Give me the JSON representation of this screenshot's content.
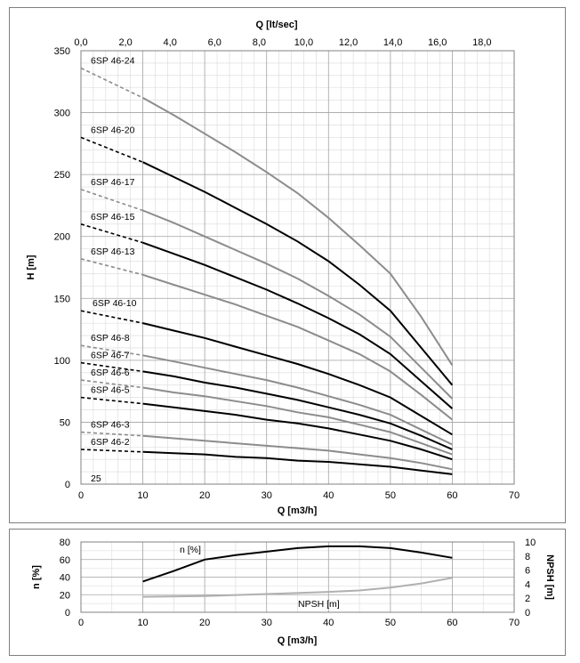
{
  "chart_data": [
    {
      "type": "line",
      "xlabel": "Q [m3/h]",
      "ylabel": "H [m]",
      "x2label": "Q [lt/sec]",
      "xlim": [
        0,
        70
      ],
      "ylim": [
        0,
        350
      ],
      "xticks": [
        "0",
        "10",
        "20",
        "30",
        "40",
        "50",
        "60",
        "70"
      ],
      "yticks": [
        "0",
        "50",
        "100",
        "150",
        "200",
        "250",
        "300",
        "350"
      ],
      "x2ticks": [
        "0,0",
        "2,0",
        "4,0",
        "6,0",
        "8,0",
        "10,0",
        "12,0",
        "14,0",
        "16,0",
        "18,0"
      ],
      "x2_per_x": 0.27778,
      "grid": true,
      "corner_note": "25",
      "series": [
        {
          "name": "6SP 46-24",
          "color": "#8c8c8c",
          "dashed_x": [
            0,
            10
          ],
          "dashed_y": [
            336,
            312
          ],
          "x": [
            10,
            15,
            20,
            25,
            30,
            35,
            40,
            45,
            50,
            55,
            60
          ],
          "y": [
            312,
            298,
            283,
            268,
            252,
            235,
            215,
            193,
            170,
            135,
            96
          ]
        },
        {
          "name": "6SP 46-20",
          "color": "#000000",
          "dashed_x": [
            0,
            10
          ],
          "dashed_y": [
            280,
            260
          ],
          "x": [
            10,
            15,
            20,
            25,
            30,
            35,
            40,
            45,
            50,
            55,
            60
          ],
          "y": [
            260,
            248,
            236,
            223,
            210,
            196,
            180,
            161,
            140,
            110,
            80
          ]
        },
        {
          "name": "6SP 46-17",
          "color": "#8c8c8c",
          "dashed_x": [
            0,
            10
          ],
          "dashed_y": [
            238,
            221
          ],
          "x": [
            10,
            15,
            20,
            25,
            30,
            35,
            40,
            45,
            50,
            55,
            60
          ],
          "y": [
            221,
            211,
            200,
            189,
            178,
            166,
            152,
            137,
            119,
            94,
            69
          ]
        },
        {
          "name": "6SP 46-15",
          "color": "#000000",
          "dashed_x": [
            0,
            10
          ],
          "dashed_y": [
            210,
            195
          ],
          "x": [
            10,
            15,
            20,
            25,
            30,
            35,
            40,
            45,
            50,
            55,
            60
          ],
          "y": [
            195,
            186,
            177,
            167,
            157,
            146,
            134,
            121,
            105,
            83,
            61
          ]
        },
        {
          "name": "6SP 46-13",
          "color": "#8c8c8c",
          "dashed_x": [
            0,
            10
          ],
          "dashed_y": [
            182,
            169
          ],
          "x": [
            10,
            15,
            20,
            25,
            30,
            35,
            40,
            45,
            50,
            55,
            60
          ],
          "y": [
            169,
            161,
            153,
            145,
            136,
            127,
            116,
            105,
            91,
            72,
            52
          ]
        },
        {
          "name": "6SP 46-10",
          "color": "#000000",
          "dashed_x": [
            0,
            10
          ],
          "dashed_y": [
            140,
            130
          ],
          "x": [
            10,
            15,
            20,
            25,
            30,
            35,
            40,
            45,
            50,
            55,
            60
          ],
          "y": [
            130,
            124,
            118,
            111,
            104,
            97,
            89,
            80,
            70,
            55,
            40
          ]
        },
        {
          "name": "6SP 46-8",
          "color": "#8c8c8c",
          "dashed_x": [
            0,
            10
          ],
          "dashed_y": [
            112,
            104
          ],
          "x": [
            10,
            15,
            20,
            25,
            30,
            35,
            40,
            45,
            50,
            55,
            60
          ],
          "y": [
            104,
            99,
            94,
            89,
            84,
            78,
            71,
            64,
            56,
            44,
            32
          ]
        },
        {
          "name": "6SP 46-7",
          "color": "#000000",
          "dashed_x": [
            0,
            10
          ],
          "dashed_y": [
            98,
            91
          ],
          "x": [
            10,
            15,
            20,
            25,
            30,
            35,
            40,
            45,
            50,
            55,
            60
          ],
          "y": [
            91,
            87,
            82,
            78,
            73,
            68,
            62,
            56,
            49,
            39,
            28
          ]
        },
        {
          "name": "6SP 46-6",
          "color": "#8c8c8c",
          "dashed_x": [
            0,
            10
          ],
          "dashed_y": [
            84,
            78
          ],
          "x": [
            10,
            15,
            20,
            25,
            30,
            35,
            40,
            45,
            50,
            55,
            60
          ],
          "y": [
            78,
            74,
            71,
            67,
            63,
            58,
            54,
            48,
            42,
            33,
            24
          ]
        },
        {
          "name": "6SP 46-5",
          "color": "#000000",
          "dashed_x": [
            0,
            10
          ],
          "dashed_y": [
            70,
            65
          ],
          "x": [
            10,
            15,
            20,
            25,
            30,
            35,
            40,
            45,
            50,
            55,
            60
          ],
          "y": [
            65,
            62,
            59,
            56,
            52,
            49,
            45,
            40,
            35,
            28,
            20
          ]
        },
        {
          "name": "6SP 46-3",
          "color": "#8c8c8c",
          "dashed_x": [
            0,
            10
          ],
          "dashed_y": [
            42,
            39
          ],
          "x": [
            10,
            15,
            20,
            25,
            30,
            35,
            40,
            45,
            50,
            55,
            60
          ],
          "y": [
            39,
            37,
            35,
            33,
            31,
            29,
            27,
            24,
            21,
            17,
            12
          ]
        },
        {
          "name": "6SP 46-2",
          "color": "#000000",
          "dashed_x": [
            0,
            10
          ],
          "dashed_y": [
            28,
            26
          ],
          "x": [
            10,
            15,
            20,
            25,
            30,
            35,
            40,
            45,
            50,
            55,
            60
          ],
          "y": [
            26,
            25,
            24,
            22,
            21,
            19,
            18,
            16,
            14,
            11,
            8
          ]
        }
      ]
    },
    {
      "type": "line",
      "xlabel": "Q [m3/h]",
      "ylabel": "n [%]",
      "y2label": "NPSH [m]",
      "xlim": [
        0,
        70
      ],
      "ylim": [
        0,
        80
      ],
      "y2lim": [
        0,
        10
      ],
      "xticks": [
        "0",
        "10",
        "20",
        "30",
        "40",
        "50",
        "60",
        "70"
      ],
      "yticks": [
        "0",
        "20",
        "40",
        "60",
        "80"
      ],
      "y2ticks": [
        "0",
        "2",
        "4",
        "6",
        "8",
        "10"
      ],
      "grid": true,
      "series": [
        {
          "name": "n [%]",
          "axis": "left",
          "color": "#000000",
          "x": [
            10,
            15,
            20,
            25,
            30,
            35,
            40,
            45,
            50,
            55,
            60
          ],
          "y": [
            35,
            47,
            60,
            65,
            69,
            73,
            75,
            75,
            73,
            68,
            62
          ]
        },
        {
          "name": "NPSH [m]",
          "axis": "right",
          "color": "#b0b0b0",
          "x": [
            10,
            20,
            30,
            40,
            45,
            50,
            55,
            60
          ],
          "y": [
            2.2,
            2.3,
            2.6,
            2.9,
            3.1,
            3.5,
            4.1,
            4.9
          ]
        }
      ]
    }
  ]
}
